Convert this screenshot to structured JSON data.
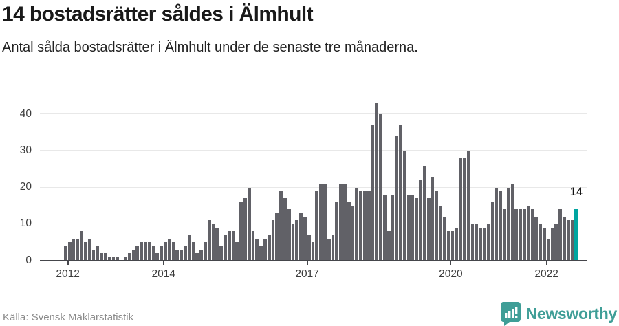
{
  "header": {
    "title": "14 bostadsrätter såldes i Älmhult",
    "subtitle": "Antal sålda bostadsrätter i Älmhult under de senaste tre månaderna."
  },
  "footer": {
    "source": "Källa: Svensk Mäklarstatistik",
    "brand": "Newsworthy"
  },
  "colors": {
    "bar": "#616167",
    "highlight": "#00a5a0",
    "gridline": "#e8e8e8",
    "axis": "#45464b",
    "logo_teal": "#3f9e97"
  },
  "chart_data": {
    "type": "bar",
    "title": "14 bostadsrätter såldes i Älmhult",
    "subtitle": "Antal sålda bostadsrätter i Älmhult under de senaste tre månaderna.",
    "x_frequency": "monthly",
    "x_start": "2011-12",
    "x_end": "2022-08",
    "ylim": [
      0,
      44
    ],
    "grid": true,
    "y_ticks": [
      0,
      10,
      20,
      30,
      40
    ],
    "x_ticks": [
      {
        "label": "2012",
        "month_index": 1
      },
      {
        "label": "2014",
        "month_index": 25
      },
      {
        "label": "2017",
        "month_index": 61
      },
      {
        "label": "2020",
        "month_index": 97
      },
      {
        "label": "2022",
        "month_index": 121
      }
    ],
    "values": [
      4,
      5,
      6,
      6,
      8,
      5,
      6,
      3,
      4,
      2,
      2,
      1,
      1,
      1,
      0,
      1,
      2,
      3,
      4,
      5,
      5,
      5,
      4,
      2,
      4,
      5,
      6,
      5,
      3,
      3,
      4,
      7,
      5,
      2,
      3,
      5,
      11,
      10,
      9,
      4,
      7,
      8,
      8,
      5,
      16,
      17,
      20,
      8,
      6,
      4,
      6,
      7,
      11,
      13,
      19,
      17,
      14,
      10,
      11,
      13,
      12,
      7,
      5,
      19,
      21,
      21,
      6,
      7,
      16,
      21,
      21,
      16,
      15,
      20,
      19,
      19,
      19,
      37,
      43,
      40,
      18,
      8,
      18,
      34,
      37,
      30,
      18,
      18,
      17,
      22,
      26,
      17,
      23,
      19,
      15,
      12,
      8,
      8,
      9,
      28,
      28,
      30,
      10,
      10,
      9,
      9,
      10,
      16,
      20,
      19,
      14,
      20,
      21,
      14,
      14,
      14,
      15,
      14,
      12,
      10,
      9,
      6,
      9,
      10,
      14,
      12,
      11,
      11,
      14
    ],
    "highlight_last_bar": true,
    "annotation": {
      "text": "14",
      "target": "last-bar"
    }
  }
}
